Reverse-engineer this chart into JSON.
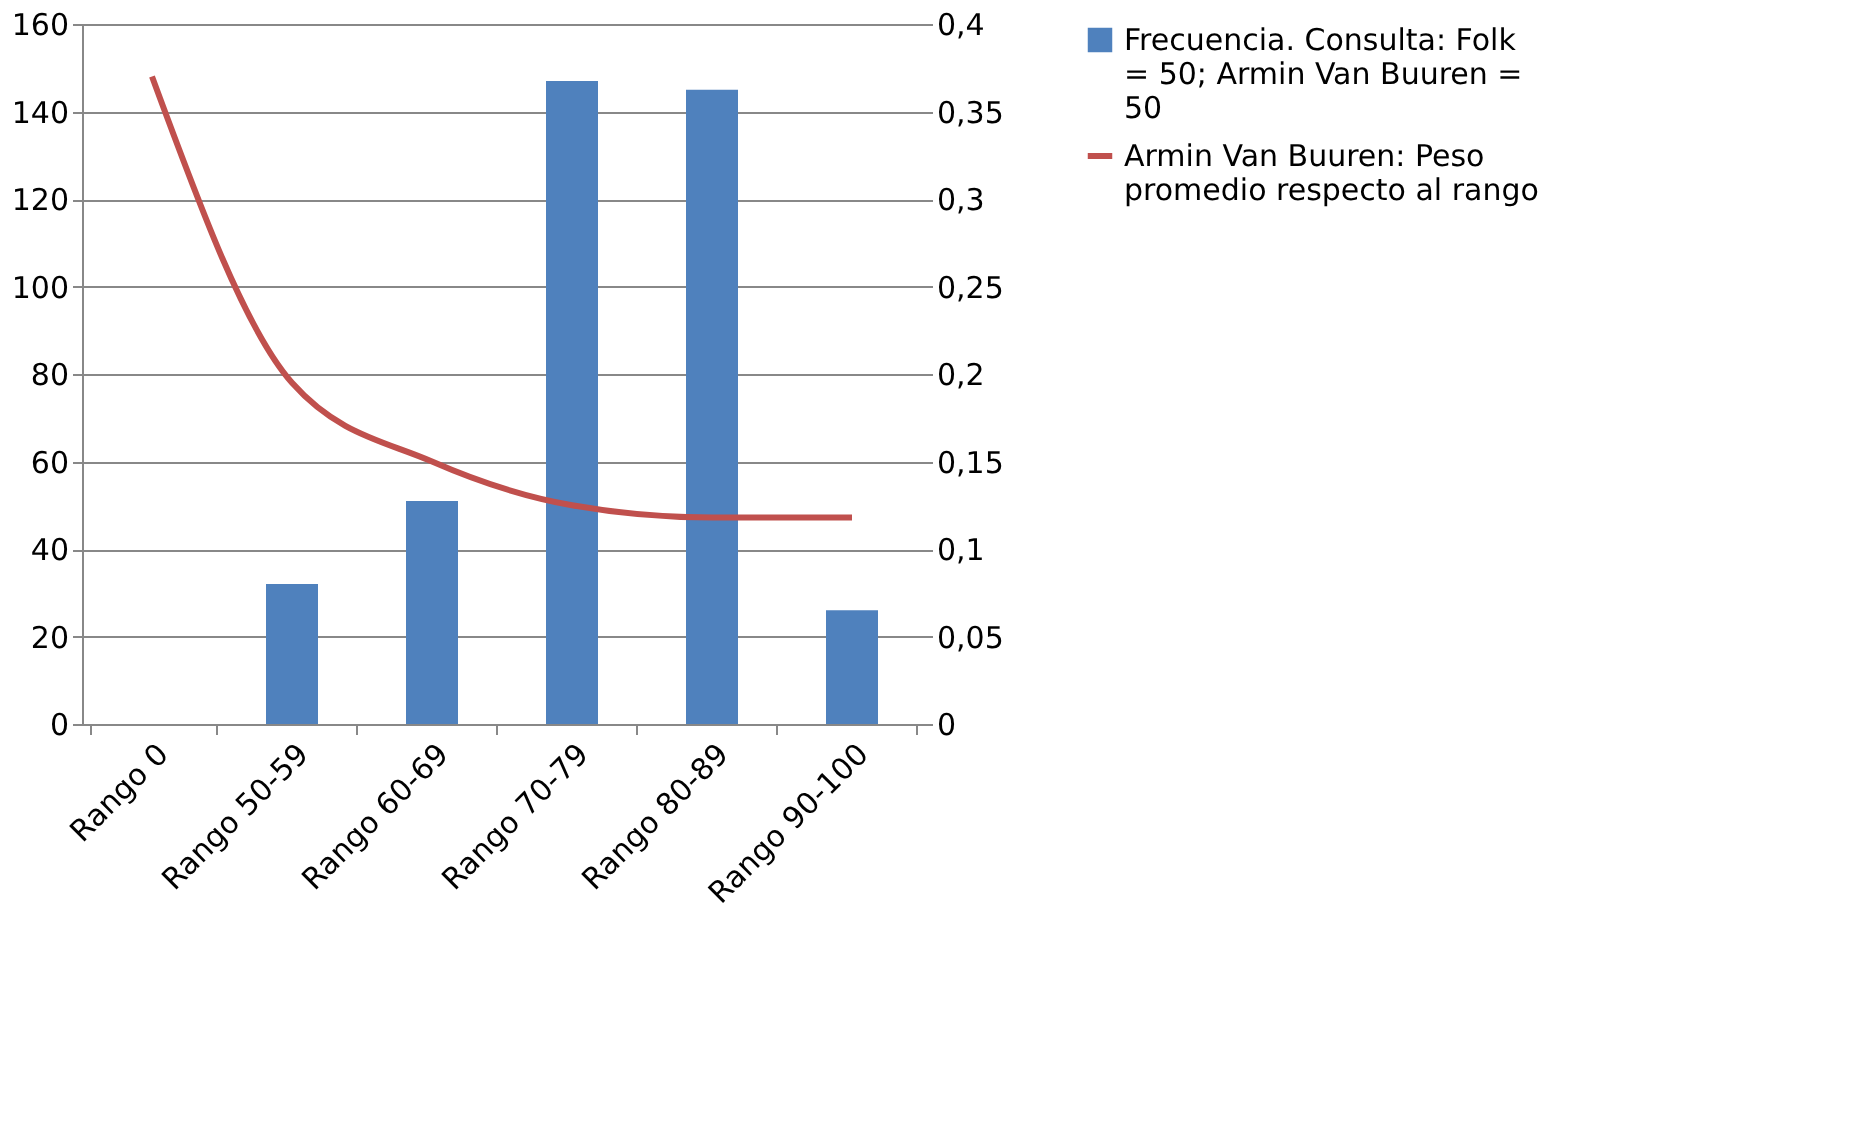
{
  "chart_data": {
    "type": "bar",
    "categories": [
      "Rango 0",
      "Rango 50-59",
      "Rango 60-69",
      "Rango 70-79",
      "Rango 80-89",
      "Rango 90-100"
    ],
    "series": [
      {
        "name": "Frecuencia. Consulta: Folk = 50; Armin Van Buuren = 50",
        "color": "#4f81bd",
        "values": [
          0,
          32,
          51,
          147,
          145,
          26
        ]
      },
      {
        "name": "Armin Van Buuren: Peso promedio respecto al rango",
        "type": "line",
        "axis": "y2",
        "color": "#c0504d",
        "values": [
          0.37,
          0.195,
          0.15,
          0.125,
          0.118,
          0.118
        ]
      }
    ],
    "ylim": [
      0,
      160
    ],
    "yticks": [
      0,
      20,
      40,
      60,
      80,
      100,
      120,
      140,
      160
    ],
    "y2lim": [
      0,
      0.4
    ],
    "y2ticks": [
      {
        "value": 0,
        "label": "0"
      },
      {
        "value": 0.05,
        "label": "0,05"
      },
      {
        "value": 0.1,
        "label": "0,1"
      },
      {
        "value": 0.15,
        "label": "0,15"
      },
      {
        "value": 0.2,
        "label": "0,2"
      },
      {
        "value": 0.25,
        "label": "0,25"
      },
      {
        "value": 0.3,
        "label": "0,3"
      },
      {
        "value": 0.35,
        "label": "0,35"
      },
      {
        "value": 0.4,
        "label": "0,4"
      }
    ],
    "grid": "y",
    "legend": "right"
  }
}
